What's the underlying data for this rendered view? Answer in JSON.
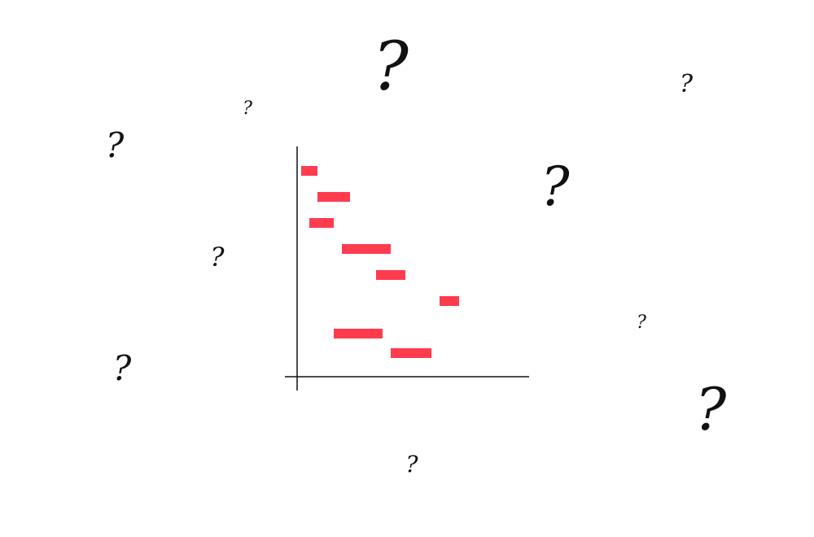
{
  "colors": {
    "background": "#ffffff",
    "ink": "#111111",
    "bar": "#ff3b4e"
  },
  "question_mark": {
    "glyph": "?",
    "icon": "question-mark-icon"
  },
  "chart_data": {
    "type": "gantt",
    "title": "",
    "xlabel": "",
    "ylabel": "",
    "xlim": [
      0,
      28.5
    ],
    "grid": false,
    "legend": "none",
    "tasks": [
      {
        "row": 1,
        "start": 0.5,
        "end": 2.5
      },
      {
        "row": 2,
        "start": 2.5,
        "end": 6.5
      },
      {
        "row": 3,
        "start": 1.5,
        "end": 4.5
      },
      {
        "row": 4,
        "start": 5.5,
        "end": 11.5
      },
      {
        "row": 5,
        "start": 9.7,
        "end": 13.3
      },
      {
        "row": 6,
        "start": 17.5,
        "end": 19.9
      },
      {
        "row": 7,
        "start": 4.5,
        "end": 10.5
      },
      {
        "row": 8,
        "start": 11.5,
        "end": 16.5
      }
    ]
  }
}
